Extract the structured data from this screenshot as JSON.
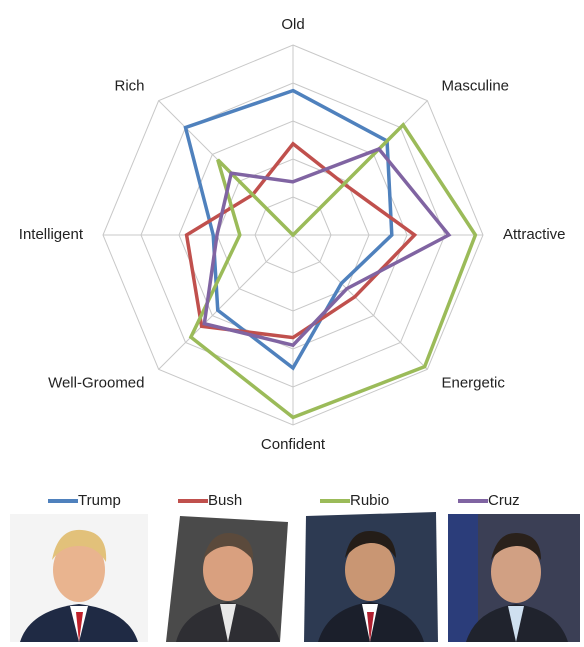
{
  "chart_data": {
    "type": "radar",
    "categories": [
      "Old",
      "Masculine",
      "Attractive",
      "Energetic",
      "Confident",
      "Well-Groomed",
      "Intelligent",
      "Rich"
    ],
    "rlim": [
      0,
      5
    ],
    "rticks": [
      1,
      2,
      3,
      4,
      5
    ],
    "grid": true,
    "legend": "bottom",
    "series": [
      {
        "name": "Trump",
        "color": "#4f81bd",
        "values": [
          3.8,
          3.5,
          2.6,
          1.8,
          3.5,
          2.8,
          2.1,
          4.0
        ]
      },
      {
        "name": "Bush",
        "color": "#c0504d",
        "values": [
          2.4,
          1.9,
          3.2,
          2.3,
          2.7,
          3.4,
          2.8,
          1.5
        ]
      },
      {
        "name": "Rubio",
        "color": "#9bbb59",
        "values": [
          0,
          4.1,
          4.8,
          4.9,
          4.8,
          3.8,
          1.4,
          2.8
        ]
      },
      {
        "name": "Cruz",
        "color": "#8064a2",
        "values": [
          1.4,
          3.2,
          4.1,
          2.0,
          2.9,
          3.3,
          2.0,
          2.3
        ]
      }
    ]
  }
}
